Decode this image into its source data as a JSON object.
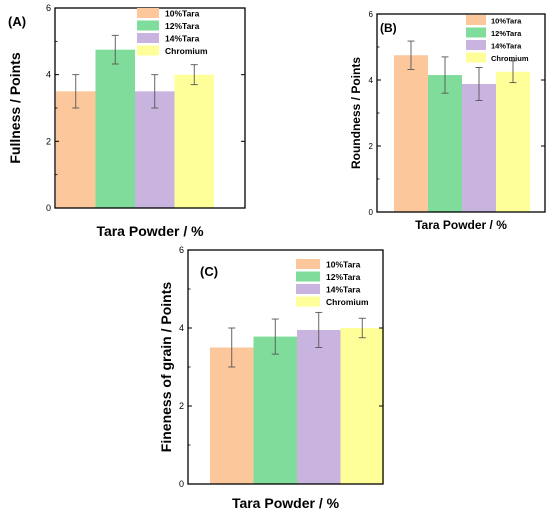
{
  "chart_data": [
    {
      "type": "bar",
      "panel_label": "(A)",
      "categories": [
        "10%Tara",
        "12%Tara",
        "14%Tara",
        "Chromium"
      ],
      "values": [
        3.5,
        4.75,
        3.5,
        4.0
      ],
      "errors": [
        0.5,
        0.43,
        0.5,
        0.3
      ],
      "colors": [
        "#fcc89b",
        "#7fdc9a",
        "#c9b3df",
        "#ffff99"
      ],
      "xlabel": "Tara Powder / %",
      "ylabel": "Fullness / Points",
      "ylim": [
        0,
        6
      ],
      "yticks": [
        "0",
        "2",
        "4",
        "6"
      ],
      "legend": [
        "10%Tara",
        "12%Tara",
        "14%Tara",
        "Chromium"
      ],
      "legend_position": "top-right",
      "grid": false
    },
    {
      "type": "bar",
      "panel_label": "(B)",
      "categories": [
        "10%Tara",
        "12%Tara",
        "14%Tara",
        "Chromium"
      ],
      "values": [
        4.75,
        4.15,
        3.88,
        4.25
      ],
      "errors": [
        0.43,
        0.55,
        0.5,
        0.33
      ],
      "colors": [
        "#fcc89b",
        "#7fdc9a",
        "#c9b3df",
        "#ffff99"
      ],
      "xlabel": "Tara Powder / %",
      "ylabel": "Roundness / Points",
      "ylim": [
        0,
        6
      ],
      "yticks": [
        "0",
        "2",
        "4",
        "6"
      ],
      "legend": [
        "10%Tara",
        "12%Tara",
        "14%Tara",
        "Chromium"
      ],
      "legend_position": "top-right",
      "grid": false
    },
    {
      "type": "bar",
      "panel_label": "(C)",
      "categories": [
        "10%Tara",
        "12%Tara",
        "14%Tara",
        "Chromium"
      ],
      "values": [
        3.5,
        3.78,
        3.95,
        4.0
      ],
      "errors": [
        0.5,
        0.45,
        0.45,
        0.25
      ],
      "colors": [
        "#fcc89b",
        "#7fdc9a",
        "#c9b3df",
        "#ffff99"
      ],
      "xlabel": "Tara Powder / %",
      "ylabel": "Fineness of grain / Points",
      "ylim": [
        0,
        6
      ],
      "yticks": [
        "0",
        "2",
        "4",
        "6"
      ],
      "legend": [
        "10%Tara",
        "12%Tara",
        "14%Tara",
        "Chromium"
      ],
      "legend_position": "top-right",
      "grid": false
    }
  ]
}
